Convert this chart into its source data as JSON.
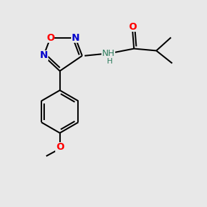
{
  "background_color": "#e8e8e8",
  "bond_color": "#000000",
  "figsize": [
    3.0,
    3.0
  ],
  "dpi": 100,
  "lw": 1.5,
  "atom_labels": {
    "O_ring": {
      "text": "O",
      "color": "#ff0000",
      "fontsize": 10,
      "fontweight": "bold"
    },
    "N1_ring": {
      "text": "N",
      "color": "#0000cc",
      "fontsize": 10,
      "fontweight": "bold"
    },
    "N2_ring": {
      "text": "N",
      "color": "#0000cc",
      "fontsize": 10,
      "fontweight": "bold"
    },
    "NH": {
      "text": "NH",
      "color": "#2a7a5a",
      "fontsize": 9,
      "fontweight": "normal"
    },
    "H": {
      "text": "H",
      "color": "#2a7a5a",
      "fontsize": 8,
      "fontweight": "normal"
    },
    "O_carbonyl": {
      "text": "O",
      "color": "#ff0000",
      "fontsize": 10,
      "fontweight": "bold"
    },
    "O_methoxy": {
      "text": "O",
      "color": "#ff0000",
      "fontsize": 10,
      "fontweight": "bold"
    }
  },
  "xlim": [
    0,
    10
  ],
  "ylim": [
    0,
    10
  ]
}
